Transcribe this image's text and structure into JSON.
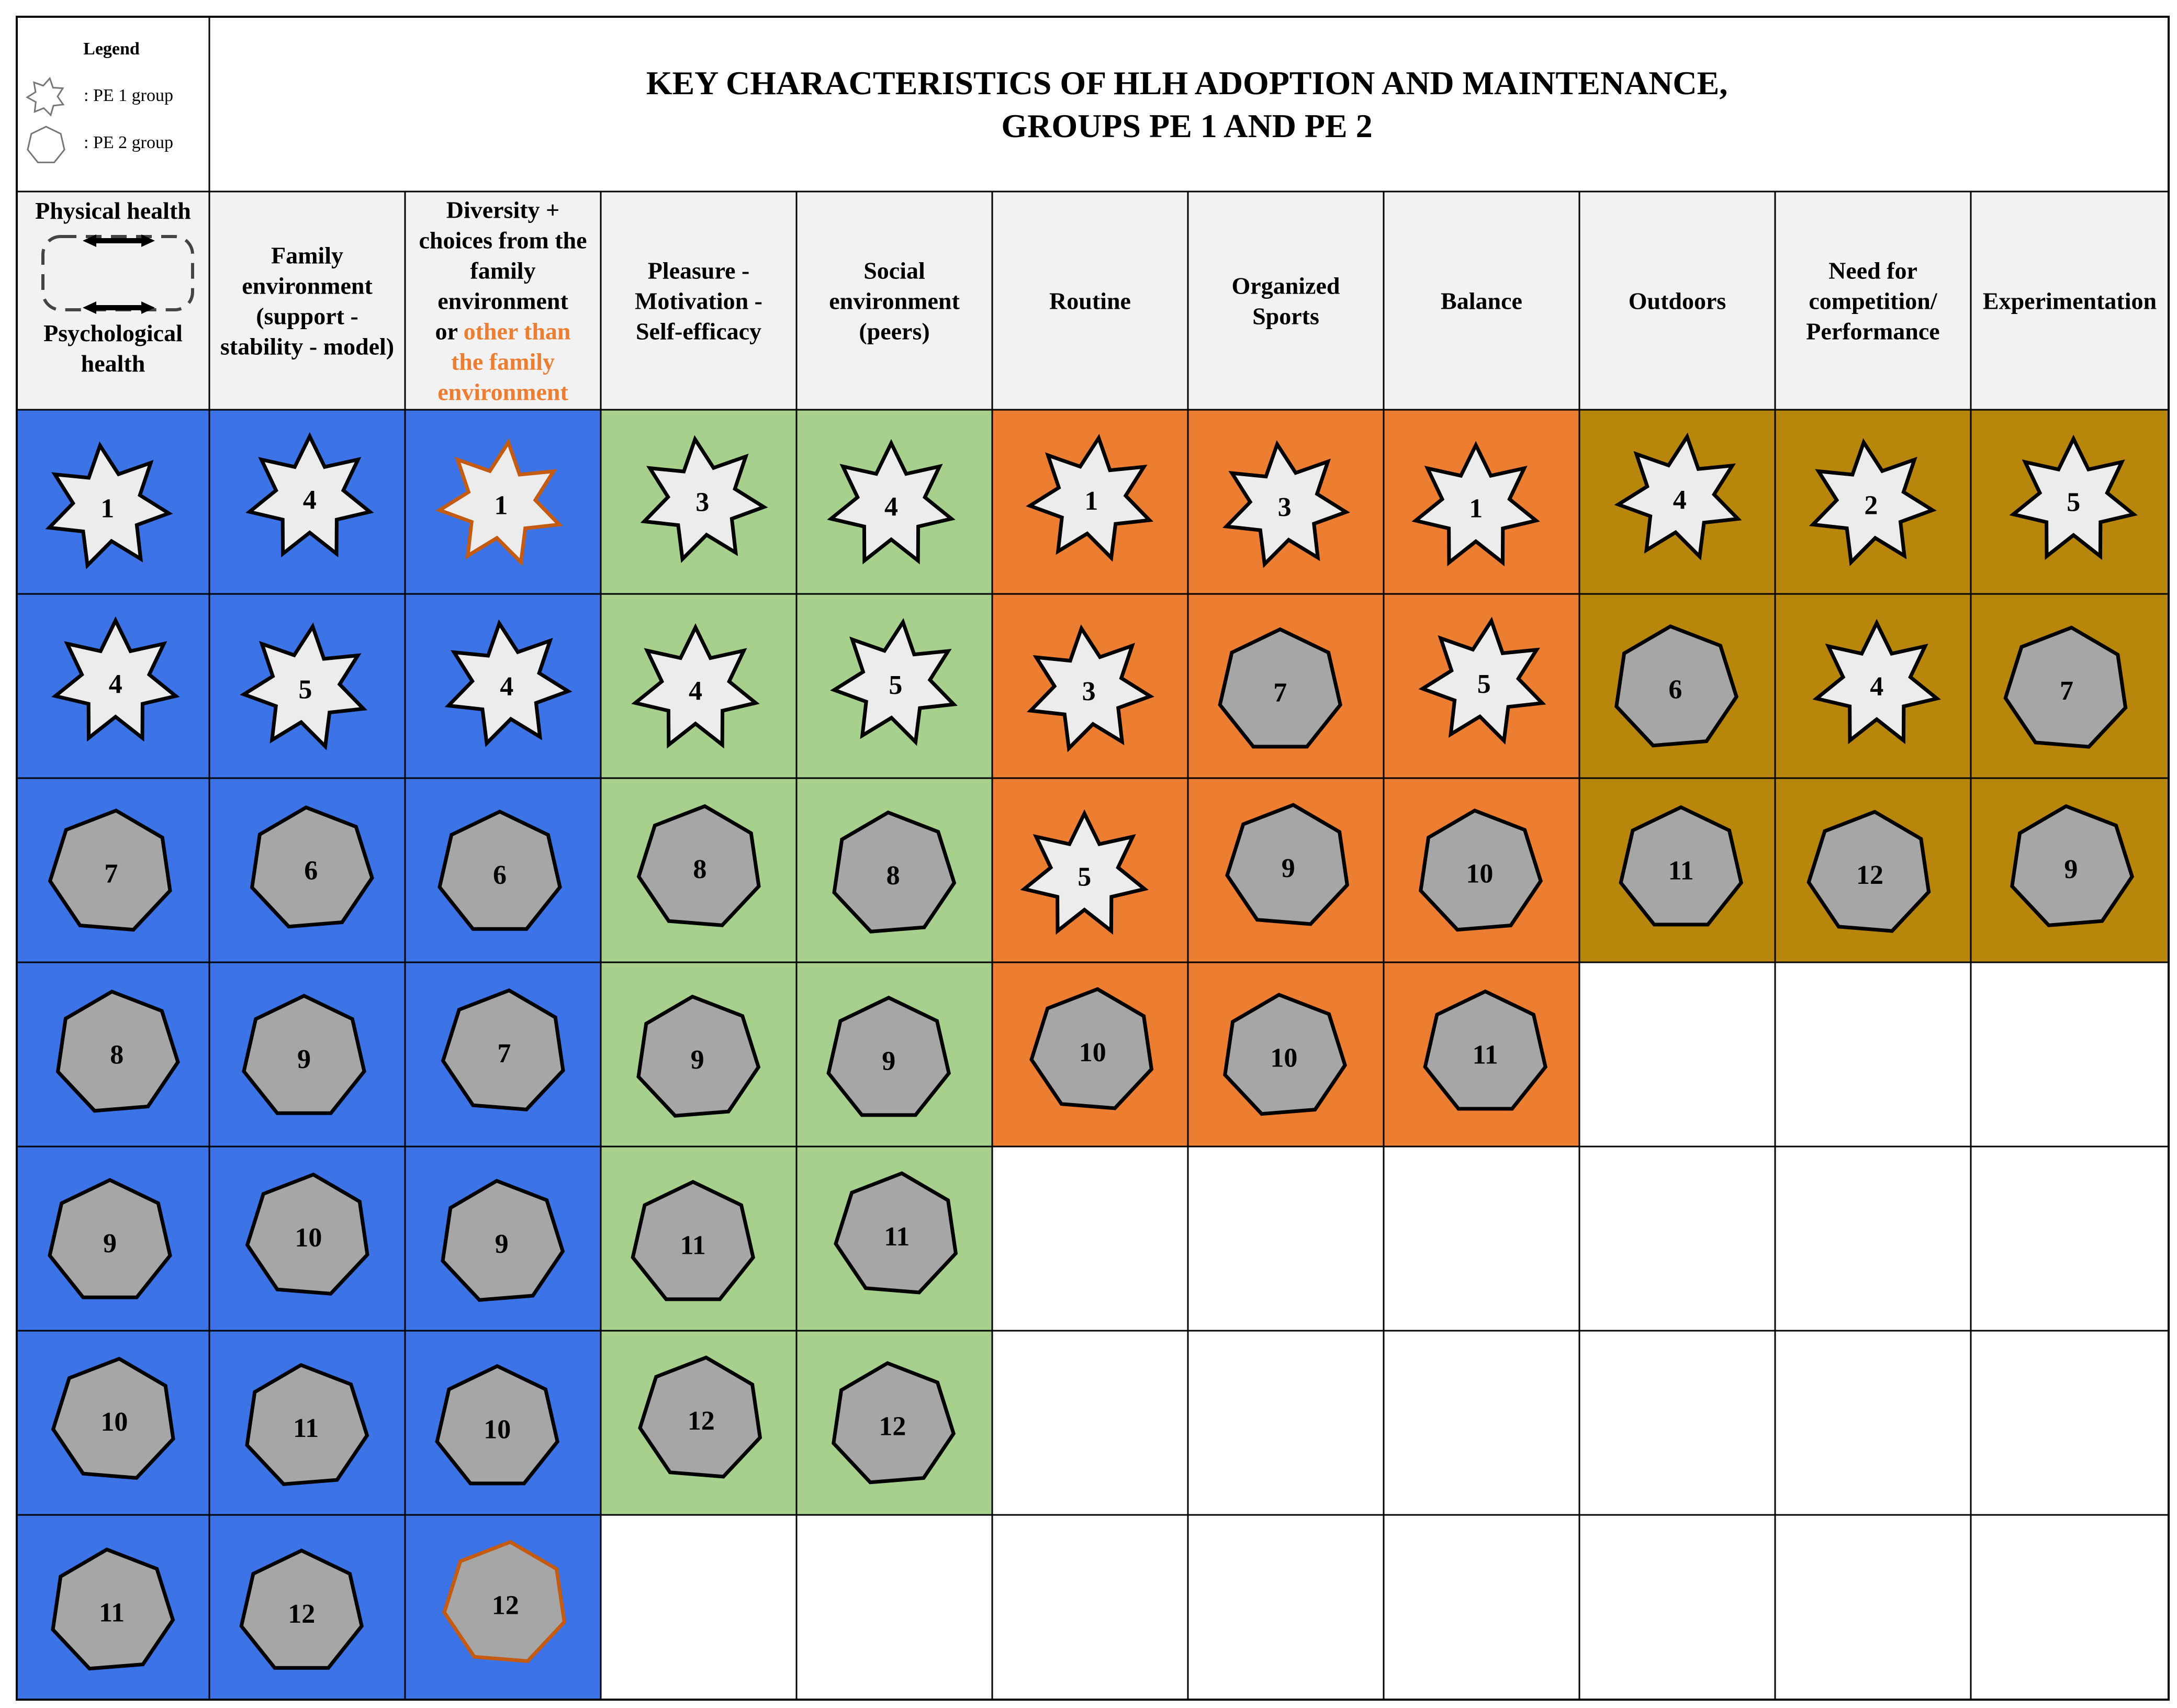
{
  "legend": {
    "title": "Legend",
    "items": [
      {
        "shape": "star",
        "label": ": PE 1 group"
      },
      {
        "shape": "heptagon",
        "label": ": PE 2 group"
      }
    ]
  },
  "title": {
    "line1": "KEY CHARACTERISTICS OF HLH ADOPTION AND MAINTENANCE,",
    "line2": "GROUPS PE 1 AND PE 2"
  },
  "first_header": {
    "top": "Physical health",
    "bottom": [
      "Psychological",
      "health"
    ]
  },
  "headers": [
    {
      "lines": [
        "Family",
        "environment",
        "(support -",
        "stability - model)"
      ]
    },
    {
      "lines": [
        "Diversity +",
        "choices from the",
        "family",
        "environment",
        "or |other than",
        "the family",
        "environment"
      ],
      "highlight": "other than the family environment"
    },
    {
      "lines": [
        "Pleasure -",
        "Motivation -",
        "Self-efficacy"
      ]
    },
    {
      "lines": [
        "Social",
        "environment",
        "(peers)"
      ]
    },
    {
      "lines": [
        "Routine"
      ]
    },
    {
      "lines": [
        "Organized",
        "Sports"
      ]
    },
    {
      "lines": [
        "Balance"
      ]
    },
    {
      "lines": [
        "Outdoors"
      ]
    },
    {
      "lines": [
        "Need for",
        "competition/",
        "Performance"
      ]
    },
    {
      "lines": [
        "Experimentation"
      ]
    }
  ],
  "colors": {
    "blue": "#3c73e6",
    "green": "#a8d08d",
    "orange": "#ed7d31",
    "gold": "#b8860b",
    "header_bg": "#f2f2f2",
    "star_fill": "#ececec",
    "hept_fill": "#a6a6a6",
    "highlight_outline": "#c55a11",
    "highlight_text": "#ed7d31"
  },
  "columns": [
    {
      "color": "blue",
      "cells": [
        {
          "s": "star",
          "n": "1"
        },
        {
          "s": "star",
          "n": "4"
        },
        {
          "s": "hept",
          "n": "7"
        },
        {
          "s": "hept",
          "n": "8"
        },
        {
          "s": "hept",
          "n": "9"
        },
        {
          "s": "hept",
          "n": "10"
        },
        {
          "s": "hept",
          "n": "11"
        }
      ]
    },
    {
      "color": "blue",
      "cells": [
        {
          "s": "star",
          "n": "4"
        },
        {
          "s": "star",
          "n": "5"
        },
        {
          "s": "hept",
          "n": "6"
        },
        {
          "s": "hept",
          "n": "9"
        },
        {
          "s": "hept",
          "n": "10"
        },
        {
          "s": "hept",
          "n": "11"
        },
        {
          "s": "hept",
          "n": "12"
        }
      ]
    },
    {
      "color": "blue",
      "cells": [
        {
          "s": "star",
          "n": "1",
          "hl": true
        },
        {
          "s": "star",
          "n": "4"
        },
        {
          "s": "hept",
          "n": "6"
        },
        {
          "s": "hept",
          "n": "7"
        },
        {
          "s": "hept",
          "n": "9"
        },
        {
          "s": "hept",
          "n": "10"
        },
        {
          "s": "hept",
          "n": "12",
          "hl": true
        }
      ]
    },
    {
      "color": "green",
      "cells": [
        {
          "s": "star",
          "n": "3"
        },
        {
          "s": "star",
          "n": "4"
        },
        {
          "s": "hept",
          "n": "8"
        },
        {
          "s": "hept",
          "n": "9"
        },
        {
          "s": "hept",
          "n": "11"
        },
        {
          "s": "hept",
          "n": "12"
        }
      ]
    },
    {
      "color": "green",
      "cells": [
        {
          "s": "star",
          "n": "4"
        },
        {
          "s": "star",
          "n": "5"
        },
        {
          "s": "hept",
          "n": "8"
        },
        {
          "s": "hept",
          "n": "9"
        },
        {
          "s": "hept",
          "n": "11"
        },
        {
          "s": "hept",
          "n": "12"
        }
      ]
    },
    {
      "color": "orange",
      "cells": [
        {
          "s": "star",
          "n": "1"
        },
        {
          "s": "star",
          "n": "3"
        },
        {
          "s": "star",
          "n": "5"
        },
        {
          "s": "hept",
          "n": "10"
        }
      ]
    },
    {
      "color": "orange",
      "cells": [
        {
          "s": "star",
          "n": "3"
        },
        {
          "s": "hept",
          "n": "7"
        },
        {
          "s": "hept",
          "n": "9"
        },
        {
          "s": "hept",
          "n": "10"
        }
      ]
    },
    {
      "color": "orange",
      "cells": [
        {
          "s": "star",
          "n": "1"
        },
        {
          "s": "star",
          "n": "5"
        },
        {
          "s": "hept",
          "n": "10"
        },
        {
          "s": "hept",
          "n": "11"
        }
      ]
    },
    {
      "color": "gold",
      "cells": [
        {
          "s": "star",
          "n": "4"
        },
        {
          "s": "hept",
          "n": "6"
        },
        {
          "s": "hept",
          "n": "11"
        }
      ]
    },
    {
      "color": "gold",
      "cells": [
        {
          "s": "star",
          "n": "2"
        },
        {
          "s": "star",
          "n": "4"
        },
        {
          "s": "hept",
          "n": "12"
        }
      ]
    },
    {
      "color": "gold",
      "cells": [
        {
          "s": "star",
          "n": "5"
        },
        {
          "s": "hept",
          "n": "7"
        },
        {
          "s": "hept",
          "n": "9"
        }
      ]
    }
  ]
}
